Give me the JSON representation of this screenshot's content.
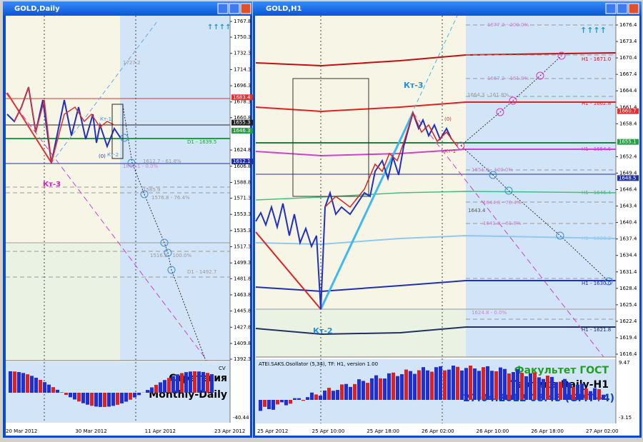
{
  "windows": [
    {
      "title": "GOLD,Daily",
      "arrows": "↑↑↑↑",
      "price_ticks": [
        1767.8,
        1750.3,
        1732.3,
        1714.3,
        1696.3,
        1678.3,
        1660.8,
        1624.8,
        1606.8,
        1588.8,
        1571.3,
        1553.3,
        1535.3,
        1517.3,
        1499.3,
        1481.8,
        1463.8,
        1445.8,
        1427.8,
        1409.8,
        1392.3
      ],
      "price_range": [
        1392.3,
        1767.8
      ],
      "price_boxes": [
        {
          "value": 1683.4,
          "color": "#e03030"
        },
        {
          "value": 1655.3,
          "color": "#202020"
        },
        {
          "value": 1646.3,
          "color": "#20a040"
        },
        {
          "value": 1612.1,
          "color": "#2030a0"
        }
      ],
      "dates": [
        "20 Mar 2012",
        "30 Mar 2012",
        "11 Apr 2012",
        "23 Apr 2012"
      ],
      "annotations": [
        "Кт-3",
        "Кт-1",
        "Кт-2",
        "(0)",
        "1727.2",
        "1612.7 - 61.8%",
        "1612.1 - 0.0%",
        "1585.9",
        "1576.8 - 76.4%",
        "1516.2 - 100.0%",
        "D1 - 1639.5",
        "D1 - 1492.7"
      ],
      "osc_labels": [
        "CV",
        "-40.44"
      ],
      "caption": [
        "Стратегия",
        "Monthly-Daily"
      ]
    },
    {
      "title": "GOLD,H1",
      "arrows": "↑↑↑↑",
      "price_ticks": [
        1676.4,
        1673.4,
        1670.4,
        1667.4,
        1664.4,
        1661.4,
        1658.4,
        1652.4,
        1649.4,
        1646.4,
        1643.4,
        1640.4,
        1637.4,
        1634.4,
        1631.4,
        1628.4,
        1625.4,
        1622.4,
        1619.4,
        1616.4
      ],
      "price_range": [
        1616.4,
        1676.4
      ],
      "price_boxes": [
        {
          "value": 1660.7,
          "color": "#e03030"
        },
        {
          "value": 1655.1,
          "color": "#20a040"
        },
        {
          "value": 1648.5,
          "color": "#2030a0"
        }
      ],
      "dates": [
        "25 Apr 2012",
        "25 Apr 10:00",
        "25 Apr 18:00",
        "26 Apr 02:00",
        "26 Apr 10:00",
        "26 Apr 18:00",
        "27 Apr 02:00"
      ],
      "annotations": [
        "Кт-3",
        "Кт-2",
        "(0)",
        "Кт-1",
        "1677.2 - 200.0%",
        "1667.2 - 161.8%",
        "1664.3 - 161.8%",
        "H1 - 1671.0",
        "H1 - 1662.8",
        "H1 - 1654.6",
        "1651.0 - 100.0%",
        "H1 - 1646.4",
        "1643.4",
        "1644.8 - 76.4%",
        "1641.0 - 61.8%",
        "H1 - 1638.2",
        "H1 - 1630.0",
        "1624.8 - 0.0%",
        "H1 - 1621.8"
      ],
      "osc_title": "ATEI.SAKS.Osollator (5,34), TF: H1, version 1.00",
      "osc_labels": [
        "9.47",
        "-3.15"
      ],
      "caption": [
        "Факультет ГОСТ",
        "Тактика Daily-H1",
        "27.04.2012 08.45 (GMT+4)"
      ]
    }
  ]
}
